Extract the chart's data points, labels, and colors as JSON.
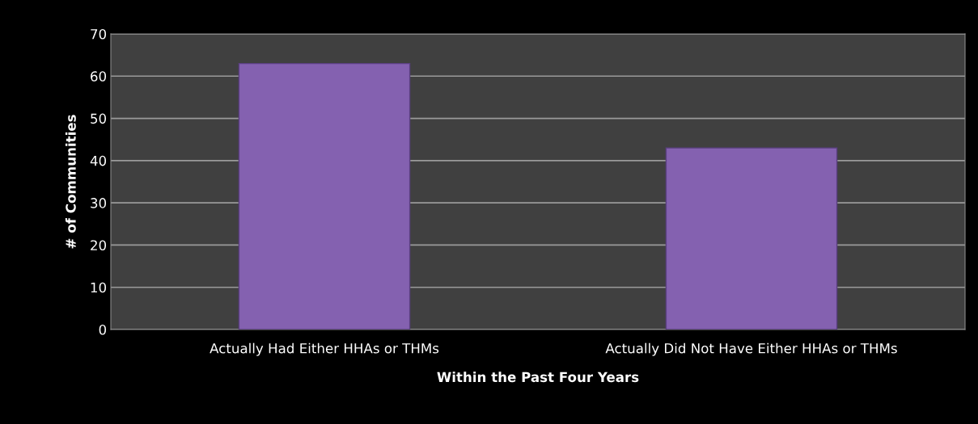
{
  "chart_data": {
    "type": "bar",
    "xlabel": "Within the Past Four Years",
    "ylabel": "# of Communities",
    "categories": [
      "Actually Had Either HHAs or THMs",
      "Actually Did Not Have Either HHAs or THMs"
    ],
    "values": [
      63,
      43
    ],
    "color": "#8461b0",
    "ylim": [
      0,
      70
    ],
    "yticks": [
      0,
      10,
      20,
      30,
      40,
      50,
      60,
      70
    ],
    "grid": "y",
    "legend": false
  }
}
